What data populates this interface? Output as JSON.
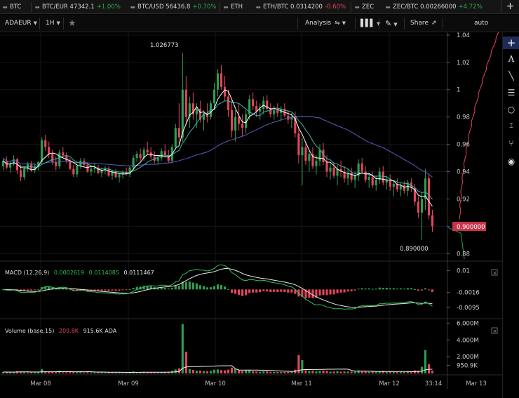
{
  "ticker": {
    "items": [
      {
        "symbol": "BTC",
        "price": "",
        "change": ""
      },
      {
        "symbol": "BTC/EUR",
        "price": "47342.1",
        "change": "+1.00%"
      },
      {
        "symbol": "BTC/USD",
        "price": "56436.8",
        "change": "+0.70%"
      },
      {
        "symbol": "ETH",
        "price": "",
        "change": ""
      },
      {
        "symbol": "ETH/BTC",
        "price": "0.0314200",
        "change": "-0.60%"
      },
      {
        "symbol": "ZEC",
        "price": "",
        "change": ""
      },
      {
        "symbol": "ZEC/BTC",
        "price": "0.00266000",
        "change": "+4.72%"
      }
    ],
    "add_tab": "+"
  },
  "toolbar": {
    "pair": "ADAEUR",
    "interval": "1H",
    "analysis": "Analysis",
    "share": "Share",
    "scale": "auto"
  },
  "icons": {
    "star": "star-icon",
    "analysis": "indicators-icon",
    "chart_type": "candlestick-icon",
    "draw": "pencil-icon",
    "share": "external-link-icon",
    "draw_tools": [
      "crosshair-plus-icon",
      "text-icon",
      "trendline-icon",
      "horizontal-lines-icon",
      "circle-icon",
      "measure-icon",
      "fork-icon",
      "eye-icon"
    ]
  },
  "colors": {
    "up": "#2e9e4f",
    "down": "#e5455c",
    "signal": "#e8e8e8",
    "ma_fast": "#ffffff",
    "ma_mid": "#2fb7a9",
    "ma_slow": "#5a5fbf",
    "depth": "#e5455c",
    "price_tag": "#c7344a"
  },
  "chart_data": [
    {
      "type": "candlestick",
      "pair": "ADAEUR",
      "interval": "1H",
      "x_ticks": [
        "Mar 08",
        "Mar 09",
        "Mar 10",
        "Mar 11",
        "Mar 12",
        "33:14",
        "Mar 13"
      ],
      "y_ticks": [
        "1.04",
        "1.02",
        "1",
        "0.98",
        "0.96",
        "0.94",
        "0.92",
        "0.9",
        "0.88"
      ],
      "ylim": [
        0.875,
        1.042
      ],
      "current_price": "0.900000",
      "annotations": {
        "high": "1.026773",
        "low": "0.890000"
      },
      "candles": [
        [
          0.944,
          0.95,
          0.941,
          0.948
        ],
        [
          0.948,
          0.951,
          0.942,
          0.943
        ],
        [
          0.943,
          0.948,
          0.939,
          0.946
        ],
        [
          0.946,
          0.952,
          0.944,
          0.949
        ],
        [
          0.949,
          0.95,
          0.938,
          0.941
        ],
        [
          0.941,
          0.945,
          0.933,
          0.936
        ],
        [
          0.936,
          0.944,
          0.934,
          0.942
        ],
        [
          0.942,
          0.947,
          0.94,
          0.946
        ],
        [
          0.946,
          0.948,
          0.94,
          0.941
        ],
        [
          0.941,
          0.946,
          0.939,
          0.944
        ],
        [
          0.944,
          0.948,
          0.941,
          0.947
        ],
        [
          0.947,
          0.965,
          0.945,
          0.963
        ],
        [
          0.963,
          0.967,
          0.955,
          0.958
        ],
        [
          0.958,
          0.962,
          0.95,
          0.953
        ],
        [
          0.953,
          0.956,
          0.945,
          0.947
        ],
        [
          0.947,
          0.951,
          0.941,
          0.944
        ],
        [
          0.944,
          0.956,
          0.942,
          0.954
        ],
        [
          0.954,
          0.958,
          0.95,
          0.952
        ],
        [
          0.952,
          0.954,
          0.946,
          0.948
        ],
        [
          0.948,
          0.95,
          0.941,
          0.942
        ],
        [
          0.942,
          0.945,
          0.936,
          0.938
        ],
        [
          0.938,
          0.946,
          0.936,
          0.944
        ],
        [
          0.944,
          0.95,
          0.942,
          0.948
        ],
        [
          0.948,
          0.95,
          0.943,
          0.945
        ],
        [
          0.945,
          0.947,
          0.939,
          0.94
        ],
        [
          0.94,
          0.944,
          0.937,
          0.942
        ],
        [
          0.942,
          0.946,
          0.939,
          0.943
        ],
        [
          0.943,
          0.945,
          0.938,
          0.939
        ],
        [
          0.939,
          0.943,
          0.936,
          0.941
        ],
        [
          0.941,
          0.944,
          0.938,
          0.942
        ],
        [
          0.942,
          0.944,
          0.936,
          0.937
        ],
        [
          0.937,
          0.941,
          0.934,
          0.94
        ],
        [
          0.94,
          0.942,
          0.935,
          0.936
        ],
        [
          0.936,
          0.939,
          0.932,
          0.938
        ],
        [
          0.938,
          0.941,
          0.935,
          0.94
        ],
        [
          0.94,
          0.943,
          0.937,
          0.938
        ],
        [
          0.938,
          0.944,
          0.936,
          0.943
        ],
        [
          0.943,
          0.952,
          0.941,
          0.95
        ],
        [
          0.95,
          0.955,
          0.947,
          0.953
        ],
        [
          0.953,
          0.957,
          0.948,
          0.95
        ],
        [
          0.95,
          0.958,
          0.948,
          0.956
        ],
        [
          0.956,
          0.962,
          0.952,
          0.954
        ],
        [
          0.954,
          0.958,
          0.949,
          0.951
        ],
        [
          0.951,
          0.955,
          0.946,
          0.948
        ],
        [
          0.948,
          0.952,
          0.945,
          0.95
        ],
        [
          0.95,
          0.957,
          0.948,
          0.955
        ],
        [
          0.955,
          0.96,
          0.95,
          0.952
        ],
        [
          0.952,
          0.956,
          0.946,
          0.948
        ],
        [
          0.948,
          0.96,
          0.946,
          0.958
        ],
        [
          0.958,
          0.975,
          0.956,
          0.972
        ],
        [
          0.972,
          0.99,
          0.96,
          0.965
        ],
        [
          0.965,
          1.027,
          0.962,
          1.0
        ],
        [
          1.0,
          1.01,
          0.975,
          0.98
        ],
        [
          0.98,
          0.995,
          0.972,
          0.99
        ],
        [
          0.99,
          0.998,
          0.978,
          0.982
        ],
        [
          0.982,
          0.99,
          0.972,
          0.986
        ],
        [
          0.986,
          0.992,
          0.976,
          0.978
        ],
        [
          0.978,
          0.985,
          0.97,
          0.983
        ],
        [
          0.983,
          0.99,
          0.976,
          0.98
        ],
        [
          0.98,
          0.992,
          0.978,
          0.99
        ],
        [
          0.99,
          1.005,
          0.985,
          1.0
        ],
        [
          1.0,
          1.015,
          0.995,
          1.012
        ],
        [
          1.012,
          1.018,
          1.0,
          1.002
        ],
        [
          1.002,
          1.01,
          0.992,
          0.995
        ],
        [
          0.995,
          1.0,
          0.98,
          0.985
        ],
        [
          0.985,
          0.992,
          0.965,
          0.97
        ],
        [
          0.97,
          0.985,
          0.962,
          0.98
        ],
        [
          0.98,
          0.99,
          0.97,
          0.975
        ],
        [
          0.975,
          0.982,
          0.966,
          0.972
        ],
        [
          0.972,
          0.985,
          0.968,
          0.982
        ],
        [
          0.982,
          0.996,
          0.978,
          0.993
        ],
        [
          0.993,
          0.998,
          0.985,
          0.988
        ],
        [
          0.988,
          0.992,
          0.98,
          0.984
        ],
        [
          0.984,
          0.99,
          0.978,
          0.986
        ],
        [
          0.986,
          0.995,
          0.982,
          0.992
        ],
        [
          0.992,
          0.996,
          0.984,
          0.986
        ],
        [
          0.986,
          0.99,
          0.98,
          0.982
        ],
        [
          0.982,
          0.988,
          0.978,
          0.985
        ],
        [
          0.985,
          0.99,
          0.98,
          0.983
        ],
        [
          0.983,
          0.988,
          0.977,
          0.986
        ],
        [
          0.986,
          0.99,
          0.98,
          0.981
        ],
        [
          0.981,
          0.985,
          0.975,
          0.978
        ],
        [
          0.978,
          0.983,
          0.972,
          0.98
        ],
        [
          0.98,
          0.984,
          0.965,
          0.968
        ],
        [
          0.968,
          0.972,
          0.946,
          0.952
        ],
        [
          0.952,
          0.965,
          0.93,
          0.958
        ],
        [
          0.958,
          0.962,
          0.945,
          0.948
        ],
        [
          0.948,
          0.956,
          0.94,
          0.953
        ],
        [
          0.953,
          0.958,
          0.942,
          0.944
        ],
        [
          0.944,
          0.952,
          0.938,
          0.948
        ],
        [
          0.948,
          0.96,
          0.944,
          0.956
        ],
        [
          0.956,
          0.961,
          0.945,
          0.947
        ],
        [
          0.947,
          0.952,
          0.936,
          0.94
        ],
        [
          0.94,
          0.946,
          0.934,
          0.943
        ],
        [
          0.943,
          0.947,
          0.935,
          0.937
        ],
        [
          0.937,
          0.945,
          0.93,
          0.942
        ],
        [
          0.942,
          0.948,
          0.936,
          0.94
        ],
        [
          0.94,
          0.944,
          0.932,
          0.935
        ],
        [
          0.935,
          0.942,
          0.93,
          0.939
        ],
        [
          0.939,
          0.943,
          0.932,
          0.934
        ],
        [
          0.934,
          0.94,
          0.928,
          0.937
        ],
        [
          0.937,
          0.949,
          0.933,
          0.946
        ],
        [
          0.946,
          0.95,
          0.938,
          0.94
        ],
        [
          0.94,
          0.944,
          0.932,
          0.934
        ],
        [
          0.934,
          0.939,
          0.928,
          0.936
        ],
        [
          0.936,
          0.94,
          0.928,
          0.93
        ],
        [
          0.93,
          0.937,
          0.926,
          0.934
        ],
        [
          0.934,
          0.943,
          0.931,
          0.94
        ],
        [
          0.94,
          0.944,
          0.93,
          0.932
        ],
        [
          0.932,
          0.937,
          0.927,
          0.934
        ],
        [
          0.934,
          0.938,
          0.926,
          0.929
        ],
        [
          0.929,
          0.933,
          0.922,
          0.931
        ],
        [
          0.931,
          0.935,
          0.925,
          0.927
        ],
        [
          0.927,
          0.932,
          0.922,
          0.93
        ],
        [
          0.93,
          0.933,
          0.924,
          0.926
        ],
        [
          0.926,
          0.934,
          0.922,
          0.932
        ],
        [
          0.932,
          0.935,
          0.925,
          0.928
        ],
        [
          0.928,
          0.931,
          0.915,
          0.918
        ],
        [
          0.918,
          0.922,
          0.906,
          0.91
        ],
        [
          0.91,
          0.925,
          0.89,
          0.92
        ],
        [
          0.92,
          0.942,
          0.912,
          0.935
        ],
        [
          0.935,
          0.938,
          0.905,
          0.908
        ],
        [
          0.908,
          0.912,
          0.896,
          0.9
        ]
      ]
    },
    {
      "type": "macd",
      "label": "MACD (12,26,9)",
      "values": [
        "0.0002619",
        "0.0114085",
        "0.0111467"
      ],
      "y_ticks": [
        "0.01",
        "-0.0016",
        "-0.0095"
      ],
      "ylim": [
        -0.0125,
        0.0135
      ]
    },
    {
      "type": "volume",
      "label": "Volume (base,15)",
      "values": [
        "209.8K",
        "915.6K ADA"
      ],
      "y_ticks": [
        "6.000M",
        "4.000M",
        "2.000M",
        "950.9K"
      ],
      "ylim": [
        0,
        6200000
      ],
      "current": "950.9K"
    }
  ]
}
